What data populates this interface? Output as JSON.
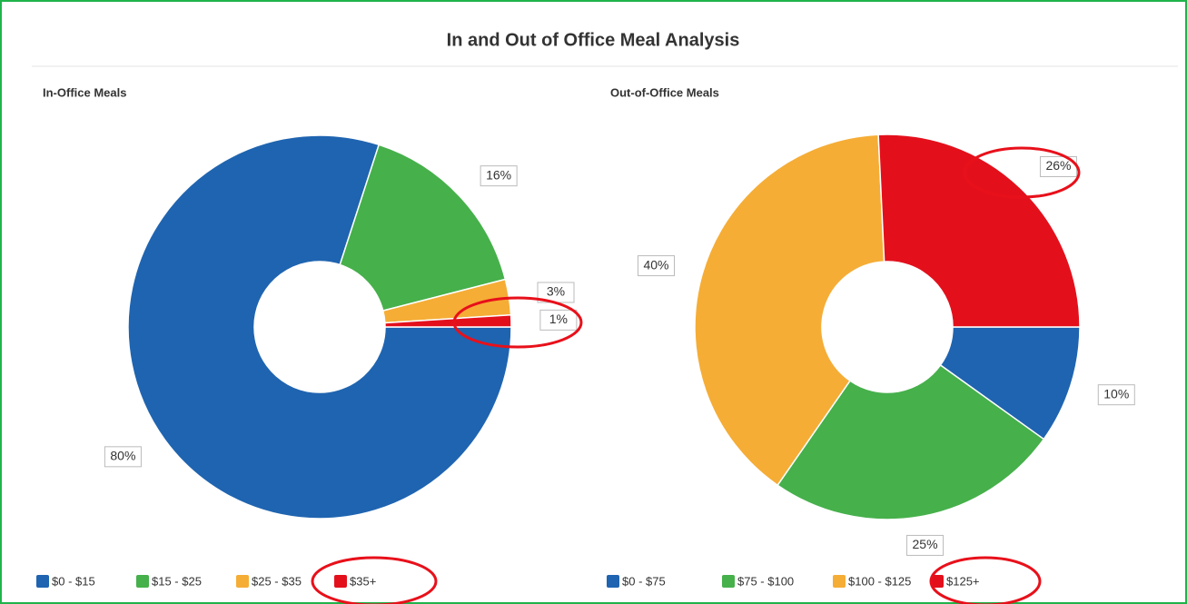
{
  "title": "In and Out of Office Meal Analysis",
  "chart_data": [
    {
      "type": "pie",
      "title": "In-Office Meals",
      "categories": [
        "$0 - $15",
        "$15 - $25",
        "$25 - $35",
        "$35+"
      ],
      "values": [
        80,
        16,
        3,
        1
      ],
      "value_labels": [
        "80%",
        "16%",
        "3%",
        "1%"
      ],
      "colors": [
        "#1f64b0",
        "#46b04b",
        "#f5ad36",
        "#e3101c"
      ]
    },
    {
      "type": "pie",
      "title": "Out-of-Office Meals",
      "categories": [
        "$0 - $75",
        "$75 - $100",
        "$100 - $125",
        "$125+"
      ],
      "values": [
        10,
        25,
        40,
        26
      ],
      "value_labels": [
        "10%",
        "25%",
        "40%",
        "26%"
      ],
      "colors": [
        "#1f64b0",
        "#46b04b",
        "#f5ad36",
        "#e3101c"
      ]
    }
  ]
}
